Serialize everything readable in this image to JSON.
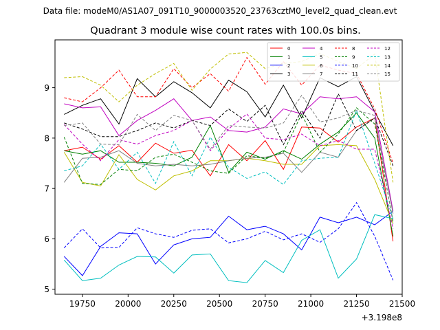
{
  "chart_data": {
    "type": "line",
    "suptitle": "Data file: modeM0/AS1A07_091T10_9000003520_23763cztM0_level2_quad_clean.evt",
    "title": "Quadrant 3 module wise count rates with 100.0s bins.",
    "xlabel": "",
    "ylabel": "",
    "x_offset_label": "+3.198e8",
    "xlim": [
      19600,
      21500
    ],
    "ylim": [
      4.9,
      9.95
    ],
    "xticks": [
      19750,
      20000,
      20250,
      20500,
      20750,
      21000,
      21250,
      21500
    ],
    "yticks": [
      5,
      6,
      7,
      8,
      9
    ],
    "legend_position": "top-right",
    "x": [
      19650,
      19750,
      19850,
      19950,
      20050,
      20150,
      20250,
      20350,
      20450,
      20550,
      20650,
      20750,
      20850,
      20950,
      21050,
      21150,
      21250,
      21350,
      21450
    ],
    "series": [
      {
        "name": "0",
        "color": "#ff0000",
        "dash": "solid",
        "values": [
          7.75,
          7.82,
          7.58,
          7.85,
          7.52,
          7.9,
          7.7,
          7.76,
          7.25,
          7.87,
          7.55,
          7.95,
          7.38,
          8.22,
          8.2,
          7.92,
          8.22,
          8.4,
          5.95
        ]
      },
      {
        "name": "1",
        "color": "#008000",
        "dash": "solid",
        "values": [
          7.75,
          7.68,
          7.75,
          7.52,
          7.52,
          7.5,
          7.45,
          7.62,
          8.25,
          7.32,
          7.72,
          7.58,
          7.75,
          7.58,
          7.88,
          8.12,
          8.5,
          8.0,
          6.05
        ]
      },
      {
        "name": "2",
        "color": "#0000ff",
        "dash": "solid",
        "values": [
          5.65,
          5.27,
          5.85,
          6.12,
          6.1,
          5.5,
          5.88,
          6.0,
          6.03,
          6.45,
          6.18,
          6.25,
          6.1,
          5.78,
          6.43,
          6.32,
          6.43,
          6.28,
          6.55
        ]
      },
      {
        "name": "3",
        "color": "#000000",
        "dash": "solid",
        "values": [
          8.47,
          8.65,
          8.78,
          8.28,
          9.18,
          8.82,
          9.12,
          8.9,
          8.6,
          9.15,
          8.92,
          8.42,
          9.05,
          8.4,
          9.2,
          9.02,
          9.22,
          8.52,
          7.85
        ]
      },
      {
        "name": "4",
        "color": "#c000c0",
        "dash": "solid",
        "values": [
          8.68,
          8.6,
          8.62,
          8.05,
          8.35,
          8.55,
          8.78,
          8.35,
          8.42,
          8.15,
          8.12,
          8.22,
          8.58,
          8.48,
          8.82,
          8.78,
          8.82,
          8.52,
          6.55
        ]
      },
      {
        "name": "5",
        "color": "#00bfbf",
        "dash": "solid",
        "values": [
          5.58,
          5.17,
          5.22,
          5.48,
          5.65,
          5.64,
          5.32,
          5.68,
          5.7,
          5.17,
          5.13,
          5.57,
          5.33,
          5.97,
          6.18,
          5.22,
          5.6,
          6.48,
          6.4
        ]
      },
      {
        "name": "6",
        "color": "#bfbf00",
        "dash": "solid",
        "values": [
          7.72,
          7.12,
          7.05,
          7.67,
          7.18,
          6.97,
          7.25,
          7.35,
          7.55,
          7.55,
          7.6,
          7.55,
          7.48,
          7.48,
          7.85,
          7.87,
          7.85,
          7.18,
          6.3
        ]
      },
      {
        "name": "7",
        "color": "#808080",
        "dash": "solid",
        "values": [
          7.12,
          7.6,
          7.62,
          7.75,
          7.5,
          7.45,
          7.48,
          7.45,
          7.48,
          7.55,
          7.6,
          7.62,
          7.7,
          7.32,
          7.72,
          7.62,
          8.15,
          8.4,
          6.5
        ]
      },
      {
        "name": "8",
        "color": "#ff0000",
        "dash": "dashed",
        "values": [
          8.8,
          8.72,
          9.0,
          9.35,
          8.82,
          8.82,
          9.38,
          9.0,
          9.28,
          8.93,
          9.6,
          9.07,
          9.52,
          9.05,
          9.45,
          9.35,
          9.28,
          8.58,
          7.5
        ]
      },
      {
        "name": "9",
        "color": "#008000",
        "dash": "dashed",
        "values": [
          8.02,
          7.1,
          7.08,
          7.38,
          7.35,
          7.62,
          7.68,
          7.52,
          7.35,
          7.3,
          7.65,
          7.6,
          7.72,
          8.48,
          7.72,
          8.08,
          8.6,
          8.28,
          6.35
        ]
      },
      {
        "name": "10",
        "color": "#0000ff",
        "dash": "dashed",
        "values": [
          5.82,
          6.2,
          5.82,
          5.83,
          6.22,
          6.1,
          6.03,
          6.17,
          6.2,
          5.92,
          6.0,
          6.15,
          5.98,
          6.1,
          5.93,
          6.2,
          6.72,
          6.05,
          5.18
        ]
      },
      {
        "name": "11",
        "color": "#000000",
        "dash": "dashed",
        "values": [
          8.3,
          8.18,
          8.03,
          8.03,
          8.15,
          8.3,
          8.2,
          8.35,
          8.25,
          8.58,
          8.33,
          8.65,
          7.87,
          8.55,
          8.0,
          8.88,
          8.15,
          8.4,
          7.45
        ]
      },
      {
        "name": "12",
        "color": "#c000c0",
        "dash": "dashed",
        "values": [
          8.27,
          7.88,
          7.55,
          7.97,
          7.88,
          8.05,
          8.15,
          8.35,
          7.75,
          8.18,
          8.48,
          8.0,
          7.97,
          8.08,
          7.85,
          7.95,
          7.78,
          7.78,
          6.2
        ]
      },
      {
        "name": "13",
        "color": "#00bfbf",
        "dash": "dashed",
        "values": [
          7.35,
          7.45,
          7.88,
          7.38,
          7.72,
          7.1,
          7.93,
          7.25,
          8.02,
          7.42,
          7.2,
          7.33,
          7.08,
          7.55,
          7.6,
          7.62,
          8.55,
          7.5,
          6.4
        ]
      },
      {
        "name": "14",
        "color": "#bfbf00",
        "dash": "dashed",
        "values": [
          9.2,
          9.22,
          9.05,
          8.72,
          9.05,
          9.28,
          9.48,
          8.95,
          9.37,
          9.67,
          9.7,
          9.38,
          9.48,
          9.52,
          9.68,
          9.52,
          9.38,
          9.67,
          7.12
        ]
      },
      {
        "name": "15",
        "color": "#808080",
        "dash": "dashed",
        "values": [
          8.25,
          8.3,
          7.88,
          7.87,
          8.47,
          8.15,
          8.45,
          8.35,
          7.78,
          8.25,
          8.22,
          8.2,
          8.3,
          8.85,
          8.32,
          8.4,
          8.55,
          8.45,
          6.3
        ]
      }
    ]
  }
}
